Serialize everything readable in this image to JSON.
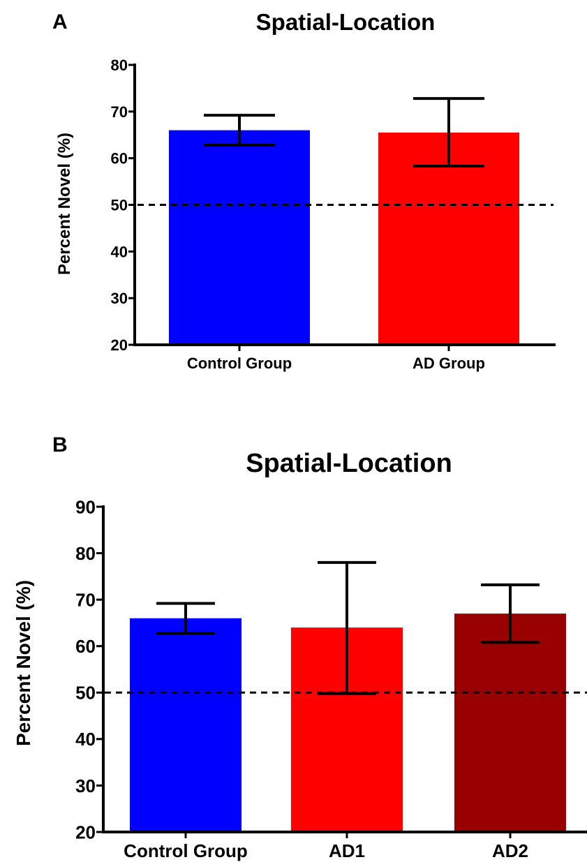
{
  "chart_data": [
    {
      "panel": "A",
      "type": "bar",
      "title": "Spatial-Location",
      "ylabel": "Percent Novel (%)",
      "xlabel": "",
      "ylim": [
        20,
        80
      ],
      "yticks": [
        20,
        30,
        40,
        50,
        60,
        70,
        80
      ],
      "categories": [
        "Control Group",
        "AD Group"
      ],
      "values": [
        66,
        65.5
      ],
      "error_low": [
        62.8,
        58.3
      ],
      "error_high": [
        69.2,
        72.8
      ],
      "colors": [
        "#0000FF",
        "#FF0000"
      ],
      "reference_line": 50,
      "grid": false,
      "legend": "none"
    },
    {
      "panel": "B",
      "type": "bar",
      "title": "Spatial-Location",
      "ylabel": "Percent Novel (%)",
      "xlabel": "",
      "ylim": [
        20,
        90
      ],
      "yticks": [
        20,
        30,
        40,
        50,
        60,
        70,
        80,
        90
      ],
      "categories": [
        "Control Group",
        "AD1",
        "AD2"
      ],
      "values": [
        66,
        64,
        67
      ],
      "error_low": [
        62.8,
        49.8,
        60.8
      ],
      "error_high": [
        69.2,
        78,
        73.2
      ],
      "colors": [
        "#0000FF",
        "#FF0000",
        "#990000"
      ],
      "reference_line": 50,
      "grid": false,
      "legend": "none"
    }
  ]
}
